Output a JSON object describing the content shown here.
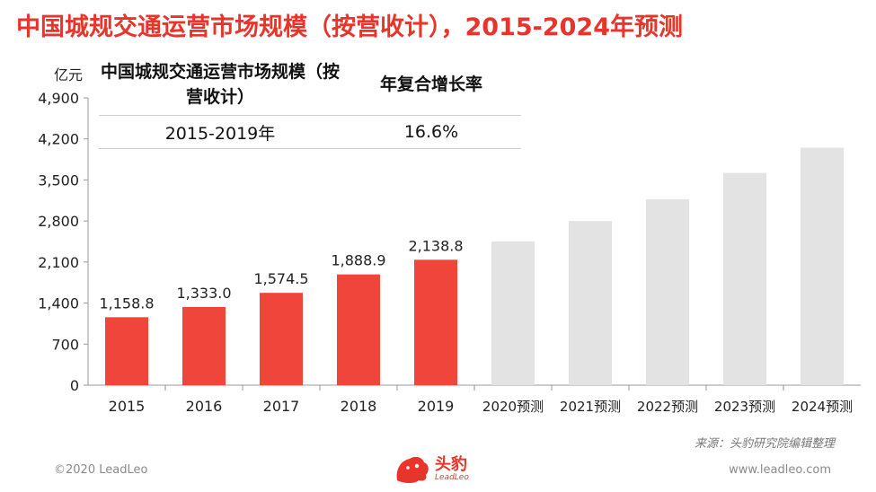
{
  "title": "中国城规交通运营市场规模（按营收计），2015-2024年预测",
  "unit": "亿元",
  "summary_table": {
    "header_col1": "中国城规交通运营市场规模（按营收计）",
    "header_col2": "年复合增长率",
    "period": "2015-2019年",
    "cagr": "16.6%"
  },
  "chart_data": {
    "type": "bar",
    "categories": [
      "2015",
      "2016",
      "2017",
      "2018",
      "2019",
      "2020预测",
      "2021预测",
      "2022预测",
      "2023预测",
      "2024预测"
    ],
    "values": [
      1158.8,
      1333.0,
      1574.5,
      1888.9,
      2138.8,
      2450,
      2800,
      3170,
      3620,
      4050
    ],
    "data_labels": [
      "1,158.8",
      "1,333.0",
      "1,574.5",
      "1,888.9",
      "2,138.8",
      "",
      "",
      "",
      "",
      ""
    ],
    "ylim": [
      0,
      4900
    ],
    "yticks": [
      0,
      700,
      1400,
      2100,
      2800,
      3500,
      4200,
      4900
    ],
    "ytick_labels": [
      "0",
      "700",
      "1,400",
      "2,100",
      "2,800",
      "3,500",
      "4,200",
      "4,900"
    ],
    "ylabel": "亿元",
    "colors": {
      "actual": "#f0453a",
      "forecast": "#e3e3e3"
    },
    "grid": false
  },
  "footer": {
    "source": "来源：头豹研究院编辑整理",
    "copyright": "©2020 LeadLeo",
    "website": "www.leadleo.com",
    "logo_text": "头豹",
    "logo_sub": "LeadLeo"
  },
  "logo_icon": "leopard-head-icon"
}
